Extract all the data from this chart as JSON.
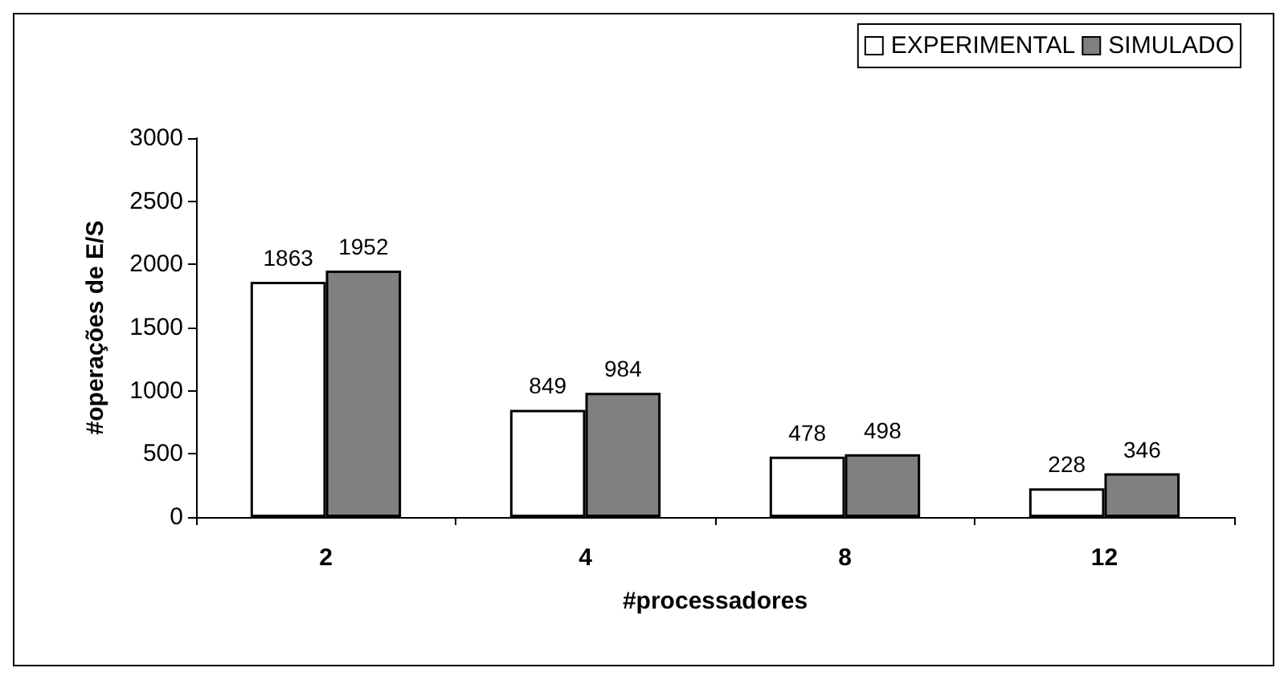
{
  "chart_data": {
    "type": "bar",
    "xlabel": "#processadores",
    "ylabel": "#operações de E/S",
    "categories": [
      "2",
      "4",
      "8",
      "12"
    ],
    "series": [
      {
        "name": "EXPERIMENTAL",
        "color": "#ffffff",
        "values": [
          1863,
          849,
          478,
          228
        ]
      },
      {
        "name": "SIMULADO",
        "color": "#808080",
        "values": [
          1952,
          984,
          498,
          346
        ]
      }
    ],
    "ylim": [
      0,
      3000
    ],
    "yticks": [
      0,
      500,
      1000,
      1500,
      2000,
      2500,
      3000
    ],
    "grid": false,
    "legend": "top right",
    "data_labels": true
  }
}
